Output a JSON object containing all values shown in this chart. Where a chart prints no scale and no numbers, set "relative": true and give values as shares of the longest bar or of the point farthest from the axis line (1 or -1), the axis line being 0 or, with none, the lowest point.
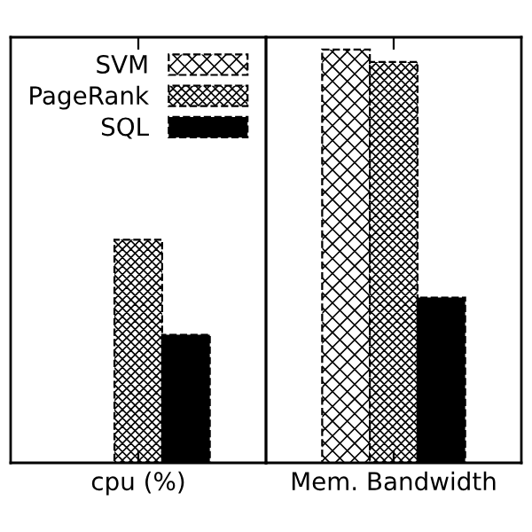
{
  "chart_data": {
    "type": "bar",
    "relative": true,
    "categories": [
      "cpu (%)",
      "Mem. Bandwidth"
    ],
    "series": [
      {
        "name": "SVM",
        "color": "#000000",
        "values": [
          null,
          1
        ]
      },
      {
        "name": "PageRank",
        "color": "#000000",
        "values": [
          0.54,
          0.97
        ]
      },
      {
        "name": "SQL",
        "color": "#000000",
        "values": [
          0.31,
          0.4
        ]
      }
    ],
    "legend": "top left",
    "grid": false
  }
}
